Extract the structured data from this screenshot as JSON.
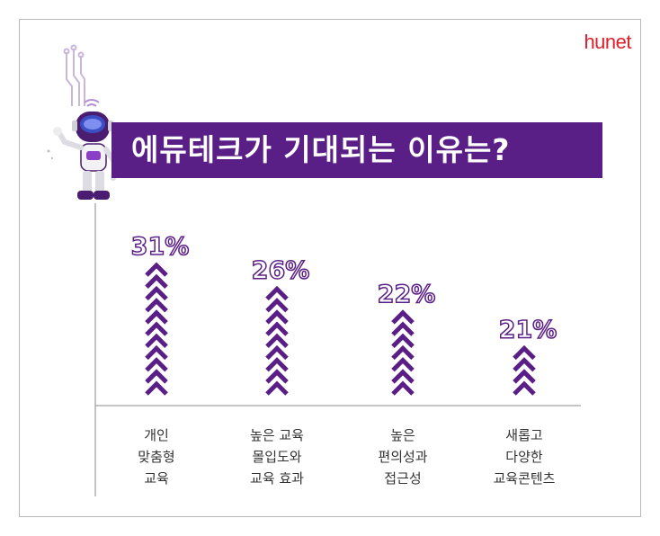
{
  "brand": {
    "logo_text": "hunet"
  },
  "title": "에듀테크가 기대되는 이유는?",
  "chart_data": {
    "type": "bar",
    "categories": [
      "개인\n맞춤형\n교육",
      "높은 교육\n몰입도와\n교육 효과",
      "높은\n편의성과\n접근성",
      "새롭고\n다양한\n교육콘텐츠"
    ],
    "values": [
      31,
      26,
      22,
      21
    ],
    "value_labels": [
      "31%",
      "26%",
      "22%",
      "21%"
    ],
    "chevrons": [
      11,
      9,
      7,
      4
    ],
    "xlabel": "",
    "ylabel": "",
    "colors": {
      "bar": "#5a1f86",
      "label_fill": "#ffffff",
      "label_stroke": "#5a1f86"
    }
  }
}
